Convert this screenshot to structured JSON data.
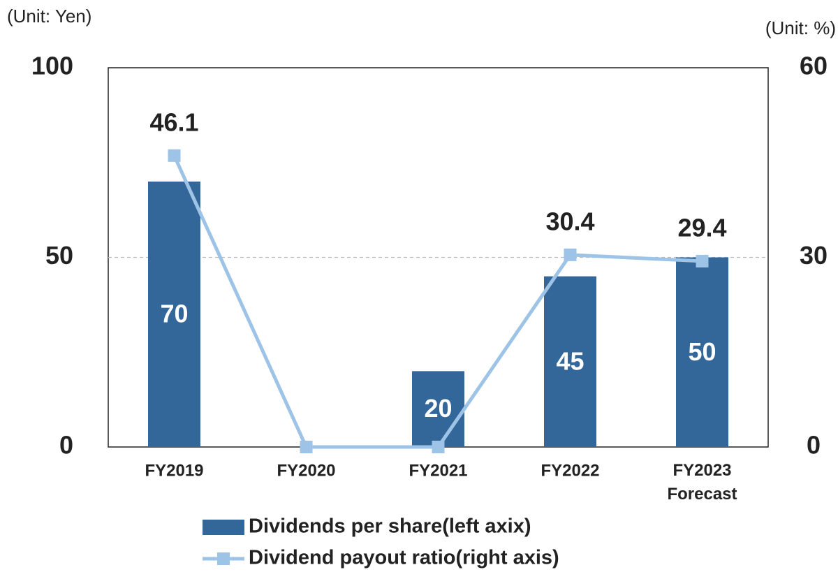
{
  "chart_data": {
    "type": "bar+line",
    "left_unit": "(Unit: Yen)",
    "right_unit": "(Unit: %)",
    "categories": [
      "FY2019",
      "FY2020",
      "FY2021",
      "FY2022",
      "FY2023\nForecast"
    ],
    "series": [
      {
        "name": "Dividends per share(left axix)",
        "type": "bar",
        "color": "#336699",
        "values": [
          70,
          null,
          20,
          45,
          50
        ]
      },
      {
        "name": "Dividend payout ratio(right axis)",
        "type": "line",
        "axis": "y2",
        "color": "#9dc3e6",
        "values": [
          46.1,
          0,
          0,
          30.4,
          29.4
        ]
      }
    ],
    "ylim": [
      0,
      100
    ],
    "yticks": [
      0,
      50,
      100
    ],
    "y2lim": [
      0,
      60
    ],
    "y2ticks": [
      0,
      30,
      60
    ],
    "grid": true
  }
}
